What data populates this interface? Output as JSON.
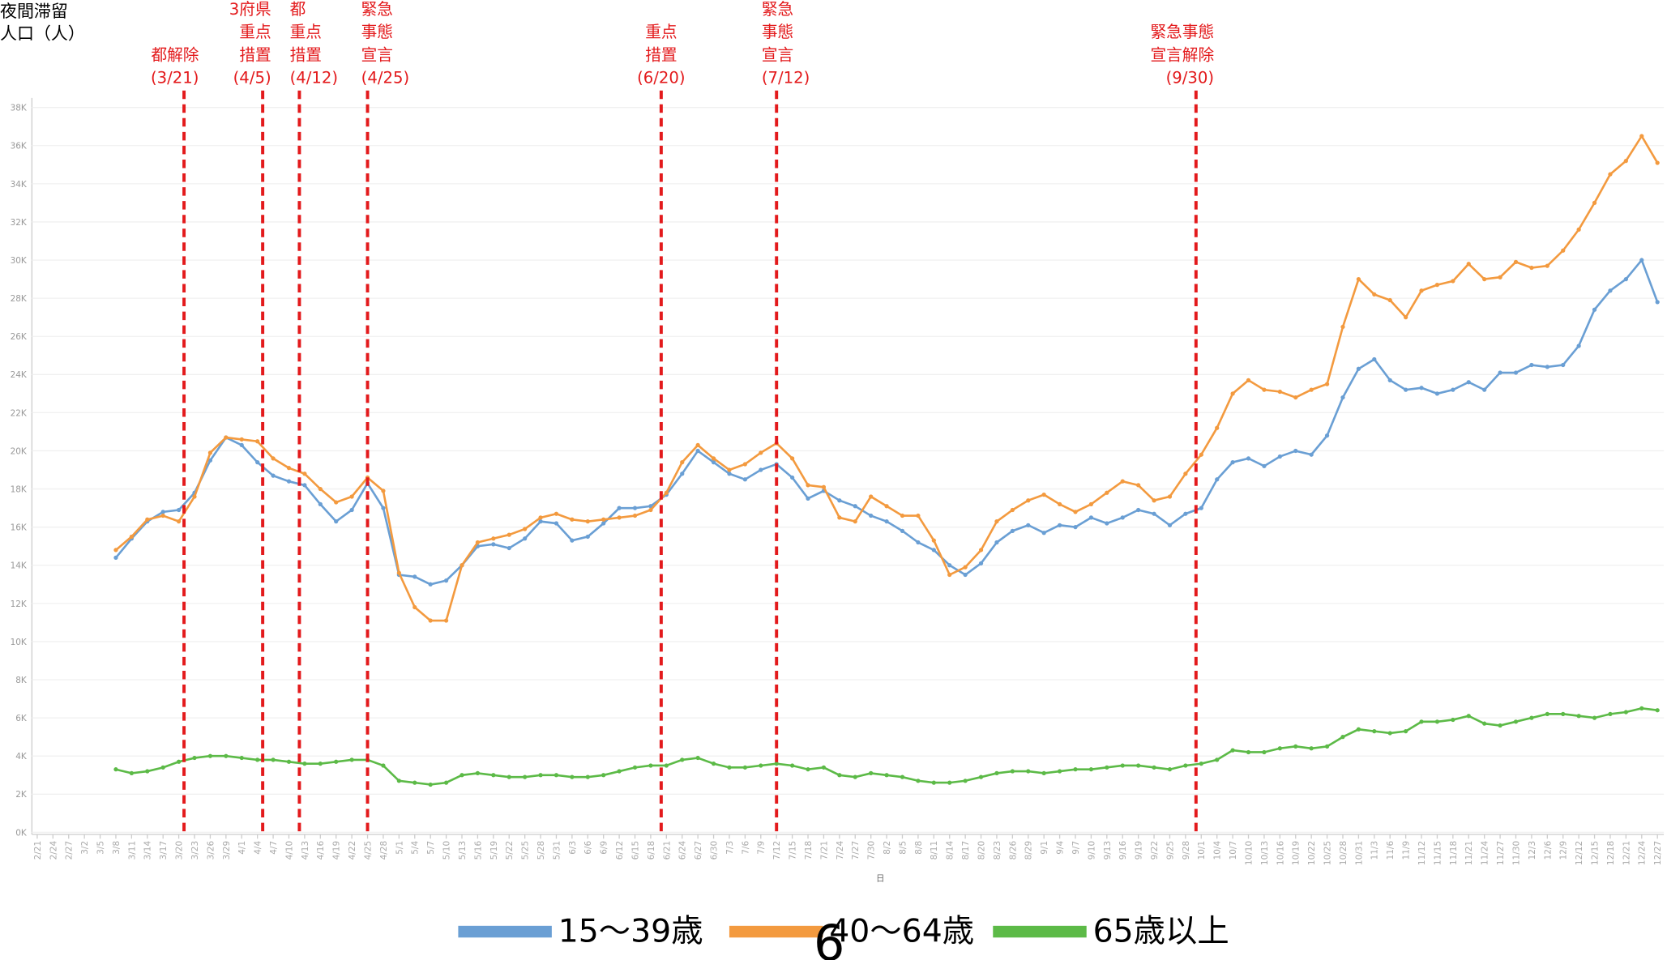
{
  "chart_data": {
    "type": "line",
    "y_title_lines": [
      "夜間滞留",
      "人口（人）"
    ],
    "x_title": "日",
    "page_number": "6",
    "grid": true,
    "ylim": [
      0,
      38600
    ],
    "yticks": [
      {
        "value": 0,
        "label": "0K"
      },
      {
        "value": 2000,
        "label": "2K"
      },
      {
        "value": 4000,
        "label": "4K"
      },
      {
        "value": 6000,
        "label": "6K"
      },
      {
        "value": 8000,
        "label": "8K"
      },
      {
        "value": 10000,
        "label": "10K"
      },
      {
        "value": 12000,
        "label": "12K"
      },
      {
        "value": 14000,
        "label": "14K"
      },
      {
        "value": 16000,
        "label": "16K"
      },
      {
        "value": 18000,
        "label": "18K"
      },
      {
        "value": 20000,
        "label": "20K"
      },
      {
        "value": 22000,
        "label": "22K"
      },
      {
        "value": 24000,
        "label": "24K"
      },
      {
        "value": 26000,
        "label": "26K"
      },
      {
        "value": 28000,
        "label": "28K"
      },
      {
        "value": 30000,
        "label": "30K"
      },
      {
        "value": 32000,
        "label": "32K"
      },
      {
        "value": 34000,
        "label": "34K"
      },
      {
        "value": 36000,
        "label": "36K"
      },
      {
        "value": 38000,
        "label": "38K"
      }
    ],
    "categories": [
      "2/21",
      "2/24",
      "2/27",
      "3/2",
      "3/5",
      "3/8",
      "3/11",
      "3/14",
      "3/17",
      "3/20",
      "3/23",
      "3/26",
      "3/29",
      "4/1",
      "4/4",
      "4/7",
      "4/10",
      "4/13",
      "4/16",
      "4/19",
      "4/22",
      "4/25",
      "4/28",
      "5/1",
      "5/4",
      "5/7",
      "5/10",
      "5/13",
      "5/16",
      "5/19",
      "5/22",
      "5/25",
      "5/28",
      "5/31",
      "6/3",
      "6/6",
      "6/9",
      "6/12",
      "6/15",
      "6/18",
      "6/21",
      "6/24",
      "6/27",
      "6/30",
      "7/3",
      "7/6",
      "7/9",
      "7/12",
      "7/15",
      "7/18",
      "7/21",
      "7/24",
      "7/27",
      "7/30",
      "8/2",
      "8/5",
      "8/8",
      "8/11",
      "8/14",
      "8/17",
      "8/20",
      "8/23",
      "8/26",
      "8/29",
      "9/1",
      "9/4",
      "9/7",
      "9/10",
      "9/13",
      "9/16",
      "9/19",
      "9/22",
      "9/25",
      "9/28",
      "10/1",
      "10/4",
      "10/7",
      "10/10",
      "10/13",
      "10/16",
      "10/19",
      "10/22",
      "10/25",
      "10/28",
      "10/31",
      "11/3",
      "11/6",
      "11/9",
      "11/12",
      "11/15",
      "11/18",
      "11/21",
      "11/24",
      "11/27",
      "11/30",
      "12/3",
      "12/6",
      "12/9",
      "12/12",
      "12/15",
      "12/18",
      "12/21",
      "12/24",
      "12/27"
    ],
    "series": [
      {
        "name": "15～39歳",
        "color": "#6a9fd4",
        "values": [
          null,
          null,
          null,
          null,
          null,
          14400,
          15400,
          16300,
          16800,
          16900,
          17800,
          19500,
          20700,
          20300,
          19400,
          18700,
          18400,
          18200,
          17200,
          16300,
          16900,
          18300,
          17000,
          13500,
          13400,
          13000,
          13200,
          14000,
          15000,
          15100,
          14900,
          15400,
          16300,
          16200,
          15300,
          15500,
          16200,
          17000,
          17000,
          17100,
          17700,
          18800,
          20000,
          19400,
          18800,
          18500,
          19000,
          19300,
          18600,
          17500,
          17900,
          17400,
          17100,
          16600,
          16300,
          15800,
          15200,
          14800,
          14000,
          13500,
          14100,
          15200,
          15800,
          16100,
          15700,
          16100,
          16000,
          16500,
          16200,
          16500,
          16900,
          16700,
          16100,
          16700,
          17000,
          18500,
          19400,
          19600,
          19200,
          19700,
          20000,
          19800,
          20800,
          22800,
          24300,
          24800,
          23700,
          23200,
          23300,
          23000,
          23200,
          23600,
          23200,
          24100,
          24100,
          24500,
          24400,
          24500,
          25500,
          27400,
          28400,
          29000,
          30000,
          27800
        ]
      },
      {
        "name": "40～64歳",
        "color": "#f39a3f",
        "values": [
          null,
          null,
          null,
          null,
          null,
          14800,
          15500,
          16400,
          16600,
          16300,
          17600,
          19900,
          20700,
          20600,
          20500,
          19600,
          19100,
          18800,
          18000,
          17300,
          17600,
          18600,
          17900,
          13600,
          11800,
          11100,
          11100,
          14000,
          15200,
          15400,
          15600,
          15900,
          16500,
          16700,
          16400,
          16300,
          16400,
          16500,
          16600,
          16900,
          17800,
          19400,
          20300,
          19600,
          19000,
          19300,
          19900,
          20400,
          19600,
          18200,
          18100,
          16500,
          16300,
          17600,
          17100,
          16600,
          16600,
          15300,
          13500,
          13900,
          14800,
          16300,
          16900,
          17400,
          17700,
          17200,
          16800,
          17200,
          17800,
          18400,
          18200,
          17400,
          17600,
          18800,
          19800,
          21200,
          23000,
          23700,
          23200,
          23100,
          22800,
          23200,
          23500,
          26500,
          29000,
          28200,
          27900,
          27000,
          28400,
          28700,
          28900,
          29800,
          29000,
          29100,
          29900,
          29600,
          29700,
          30500,
          31600,
          33000,
          34500,
          35200,
          36500,
          35100
        ]
      },
      {
        "name": "65歳以上",
        "color": "#5cba47",
        "values": [
          null,
          null,
          null,
          null,
          null,
          3300,
          3100,
          3200,
          3400,
          3700,
          3900,
          4000,
          4000,
          3900,
          3800,
          3800,
          3700,
          3600,
          3600,
          3700,
          3800,
          3800,
          3500,
          2700,
          2600,
          2500,
          2600,
          3000,
          3100,
          3000,
          2900,
          2900,
          3000,
          3000,
          2900,
          2900,
          3000,
          3200,
          3400,
          3500,
          3500,
          3800,
          3900,
          3600,
          3400,
          3400,
          3500,
          3600,
          3500,
          3300,
          3400,
          3000,
          2900,
          3100,
          3000,
          2900,
          2700,
          2600,
          2600,
          2700,
          2900,
          3100,
          3200,
          3200,
          3100,
          3200,
          3300,
          3300,
          3400,
          3500,
          3500,
          3400,
          3300,
          3500,
          3600,
          3800,
          4300,
          4200,
          4200,
          4400,
          4500,
          4400,
          4500,
          5000,
          5400,
          5300,
          5200,
          5300,
          5800,
          5800,
          5900,
          6100,
          5700,
          5600,
          5800,
          6000,
          6200,
          6200,
          6100,
          6000,
          6200,
          6300,
          6500,
          6400
        ]
      }
    ],
    "annotations": [
      {
        "lines": [
          "都解除",
          "(3/21)"
        ]
      },
      {
        "lines": [
          "3府県",
          "重点",
          "措置",
          "(4/5)"
        ]
      },
      {
        "lines": [
          "都",
          "重点",
          "措置",
          "(4/12)"
        ]
      },
      {
        "lines": [
          "緊急",
          "事態",
          "宣言",
          "(4/25)"
        ]
      },
      {
        "lines": [
          "重点",
          "措置",
          "(6/20)"
        ]
      },
      {
        "lines": [
          "緊急",
          "事態",
          "宣言",
          "(7/12)"
        ]
      },
      {
        "lines": [
          "緊急事態",
          "宣言解除",
          "(9/30)"
        ]
      }
    ],
    "annotation_color": "#e31a1c"
  }
}
